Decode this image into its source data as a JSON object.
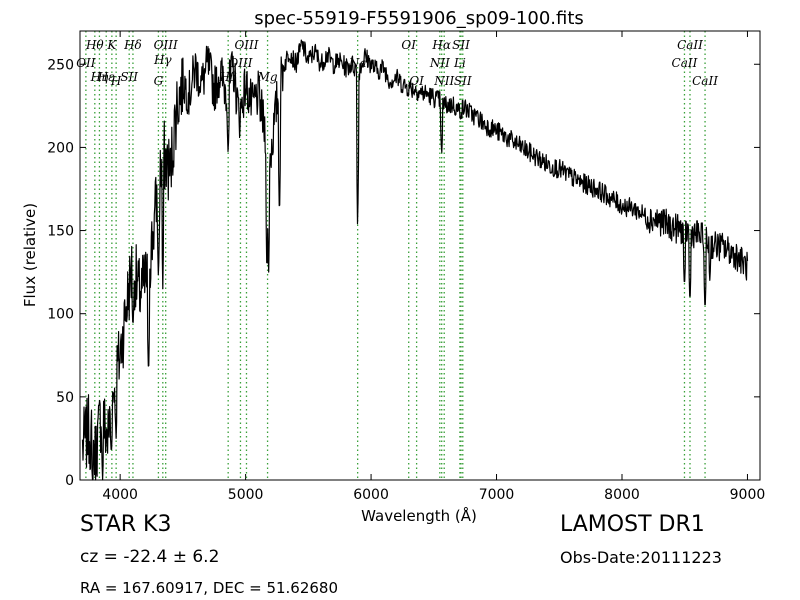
{
  "chart_data": {
    "type": "line",
    "title": "spec-55919-F5591906_sp09-100.fits",
    "xlabel": "Wavelength (Å)",
    "ylabel": "Flux (relative)",
    "xlim": [
      3680,
      9100
    ],
    "ylim": [
      0,
      270
    ],
    "xticks": [
      4000,
      5000,
      6000,
      7000,
      8000,
      9000
    ],
    "yticks": [
      0,
      50,
      100,
      150,
      200,
      250
    ],
    "grid": false,
    "line_color": "#000000",
    "marker_color": "#3aa03a",
    "series": [
      {
        "x": [
          3700,
          3750,
          3800,
          3850,
          3900,
          3950,
          4000,
          4050,
          4100,
          4150,
          4200,
          4250,
          4300,
          4350,
          4400,
          4450,
          4500,
          4550,
          4600,
          4650,
          4700,
          4750,
          4800,
          4850,
          4900,
          4950,
          5000,
          5050,
          5100,
          5150,
          5200,
          5250,
          5300,
          5350,
          5400,
          5450,
          5500,
          5550,
          5600,
          5650,
          5700,
          5750,
          5800,
          5850,
          5900,
          5950,
          6000,
          6050,
          6100,
          6150,
          6200,
          6250,
          6300,
          6350,
          6400,
          6450,
          6500,
          6550,
          6600,
          6650,
          6700,
          6750,
          6800,
          6850,
          6900,
          6950,
          7000,
          7100,
          7200,
          7300,
          7400,
          7500,
          7600,
          7700,
          7800,
          7900,
          8000,
          8100,
          8200,
          8300,
          8400,
          8500,
          8600,
          8700,
          8800,
          8900,
          9000
        ],
        "y": [
          20,
          30,
          15,
          40,
          25,
          55,
          75,
          105,
          130,
          112,
          118,
          140,
          175,
          195,
          185,
          225,
          240,
          232,
          248,
          238,
          250,
          235,
          245,
          232,
          248,
          218,
          238,
          225,
          232,
          212,
          195,
          228,
          248,
          258,
          250,
          262,
          252,
          258,
          250,
          256,
          250,
          252,
          248,
          250,
          245,
          255,
          250,
          246,
          248,
          240,
          242,
          238,
          236,
          235,
          233,
          232,
          230,
          228,
          225,
          226,
          222,
          224,
          220,
          218,
          214,
          212,
          210,
          205,
          200,
          195,
          190,
          187,
          182,
          178,
          175,
          170,
          165,
          163,
          158,
          156,
          152,
          150,
          148,
          142,
          140,
          136,
          128
        ]
      }
    ],
    "dips": [
      {
        "x": 3780,
        "y": 0
      },
      {
        "x": 3860,
        "y": 0
      },
      {
        "x": 3930,
        "y": 15
      },
      {
        "x": 3968,
        "y": 25
      },
      {
        "x": 4102,
        "y": 90
      },
      {
        "x": 4226,
        "y": 60
      },
      {
        "x": 4305,
        "y": 120
      },
      {
        "x": 4340,
        "y": 115
      },
      {
        "x": 4861,
        "y": 195
      },
      {
        "x": 5170,
        "y": 120
      },
      {
        "x": 5183,
        "y": 120
      },
      {
        "x": 5270,
        "y": 155
      },
      {
        "x": 5893,
        "y": 148
      },
      {
        "x": 6563,
        "y": 195
      },
      {
        "x": 8498,
        "y": 115
      },
      {
        "x": 8542,
        "y": 105
      },
      {
        "x": 8662,
        "y": 100
      },
      {
        "x": 8700,
        "y": 120
      }
    ],
    "lines": [
      {
        "label": "Hθ",
        "x": 3798,
        "row": 0
      },
      {
        "label": "K",
        "x": 3934,
        "row": 0
      },
      {
        "label": "Hδ",
        "x": 4102,
        "row": 0
      },
      {
        "label": "OIII",
        "x": 4363,
        "row": 0
      },
      {
        "label": "OIII",
        "x": 5007,
        "row": 0
      },
      {
        "label": "OI",
        "x": 6300,
        "row": 0
      },
      {
        "label": "Hα",
        "x": 6563,
        "row": 0
      },
      {
        "label": "SII",
        "x": 6717,
        "row": 0
      },
      {
        "label": "CaII",
        "x": 8542,
        "row": 0
      },
      {
        "label": "Hγ",
        "x": 4340,
        "row": 1
      },
      {
        "label": "OII",
        "x": 3727,
        "row": 1
      },
      {
        "label": "OIII",
        "x": 4959,
        "row": 1
      },
      {
        "label": "Na",
        "x": 5893,
        "row": 1
      },
      {
        "label": "NII",
        "x": 6548,
        "row": 1
      },
      {
        "label": "Li",
        "x": 6708,
        "row": 1
      },
      {
        "label": "CaII",
        "x": 8498,
        "row": 1
      },
      {
        "label": "Hη",
        "x": 3835,
        "row": 2
      },
      {
        "label": "SII",
        "x": 4072,
        "row": 2
      },
      {
        "label": "Hε",
        "x": 3889,
        "row": 2
      },
      {
        "label": "Mg",
        "x": 5175,
        "row": 2
      },
      {
        "label": "Hβ",
        "x": 4861,
        "row": 2
      },
      {
        "label": "H",
        "x": 3968,
        "row": 3
      },
      {
        "label": "G",
        "x": 4305,
        "row": 3
      },
      {
        "label": "OI",
        "x": 6363,
        "row": 3
      },
      {
        "label": "NII",
        "x": 6583,
        "row": 3
      },
      {
        "label": "SII",
        "x": 6731,
        "row": 3
      },
      {
        "label": "CaII",
        "x": 8662,
        "row": 3
      }
    ]
  },
  "footer": {
    "object_class": "STAR   K3",
    "cz": "cz = -22.4 ± 6.2",
    "radec": "RA = 167.60917, DEC = 51.62680",
    "survey": "LAMOST DR1",
    "obs_date": "Obs-Date:20111223"
  }
}
